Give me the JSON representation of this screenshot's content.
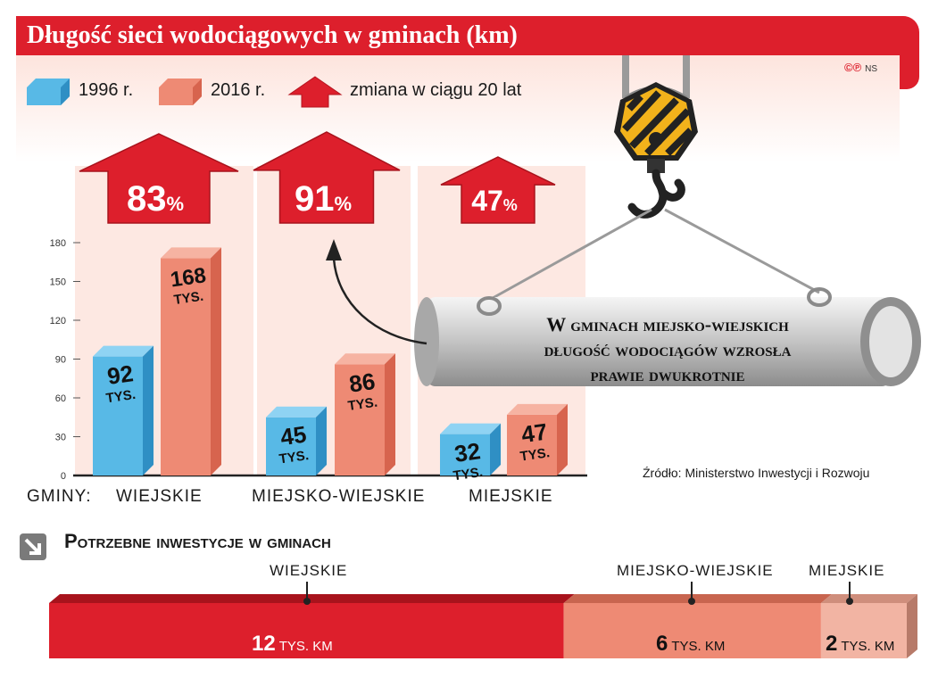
{
  "title": "Długość sieci wodociągowych w gminach (km)",
  "copyright": "©℗",
  "copyright_author": "NS",
  "legend": {
    "y1996": "1996 r.",
    "y2016": "2016 r.",
    "change": "zmiana w ciągu 20 lat"
  },
  "colors": {
    "y1996": "#58b9e6",
    "y2016": "#ee8a74",
    "accent": "#dd1f2c"
  },
  "chart_data": {
    "type": "bar",
    "categories": [
      "WIEJSKIE",
      "MIEJSKO-WIEJSKIE",
      "MIEJSKIE"
    ],
    "category_prefix": "GMINY:",
    "series": [
      {
        "name": "1996 r.",
        "values": [
          92,
          45,
          32
        ],
        "labels": [
          "92",
          "45",
          "32"
        ],
        "unit": "TYS."
      },
      {
        "name": "2016 r.",
        "values": [
          168,
          86,
          47
        ],
        "labels": [
          "168",
          "86",
          "47"
        ],
        "unit": "TYS."
      }
    ],
    "change_labels": [
      "83%",
      "91%",
      "47%"
    ],
    "yticks": [
      "0",
      "30",
      "60",
      "90",
      "120",
      "150",
      "180"
    ],
    "ylim": [
      0,
      180
    ]
  },
  "callout": {
    "line1": "W gminach miejsko-wiejskich",
    "line2": "długość wodociągów wzrosła",
    "line3": "prawie dwukrotnie"
  },
  "source": "Źródło: Ministerstwo Inwestycji i Rozwoju",
  "investments": {
    "title": "Potrzebne inwestycje w gminach",
    "items": [
      {
        "label": "WIEJSKIE",
        "value": "12",
        "unit": "TYS. KM",
        "amount": 12
      },
      {
        "label": "MIEJSKO-WIEJSKIE",
        "value": "6",
        "unit": "TYS. KM",
        "amount": 6
      },
      {
        "label": "MIEJSKIE",
        "value": "2",
        "unit": "TYS. KM",
        "amount": 2
      }
    ]
  }
}
